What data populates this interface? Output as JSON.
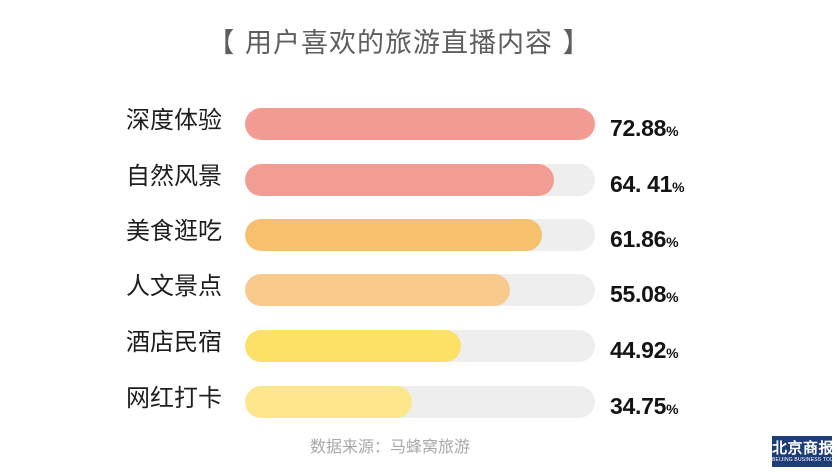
{
  "chart_data": {
    "type": "bar",
    "orientation": "horizontal",
    "title": "【 用户喜欢的旅游直播内容 】",
    "categories": [
      "深度体验",
      "自然风景",
      "美食逛吃",
      "人文景点",
      "酒店民宿",
      "网红打卡"
    ],
    "values": [
      72.88,
      64.41,
      61.86,
      55.08,
      44.92,
      34.75
    ],
    "value_labels": [
      "72.88",
      "64. 41",
      "61.86",
      "55.08",
      "44.92",
      "34.75"
    ],
    "unit": "%",
    "xlim": [
      0,
      72.88
    ],
    "grid": false,
    "colors": [
      "#f29b93",
      "#f19d94",
      "#f6c06c",
      "#f8cb8d",
      "#fde066",
      "#fde68b"
    ],
    "track_color": "#eeeeee"
  },
  "source": "数据来源：马蜂窝旅游",
  "logo": {
    "name": "北京商报",
    "subtitle": "BEIJING BUSINESS TODAY",
    "background": "#1d3c78"
  }
}
